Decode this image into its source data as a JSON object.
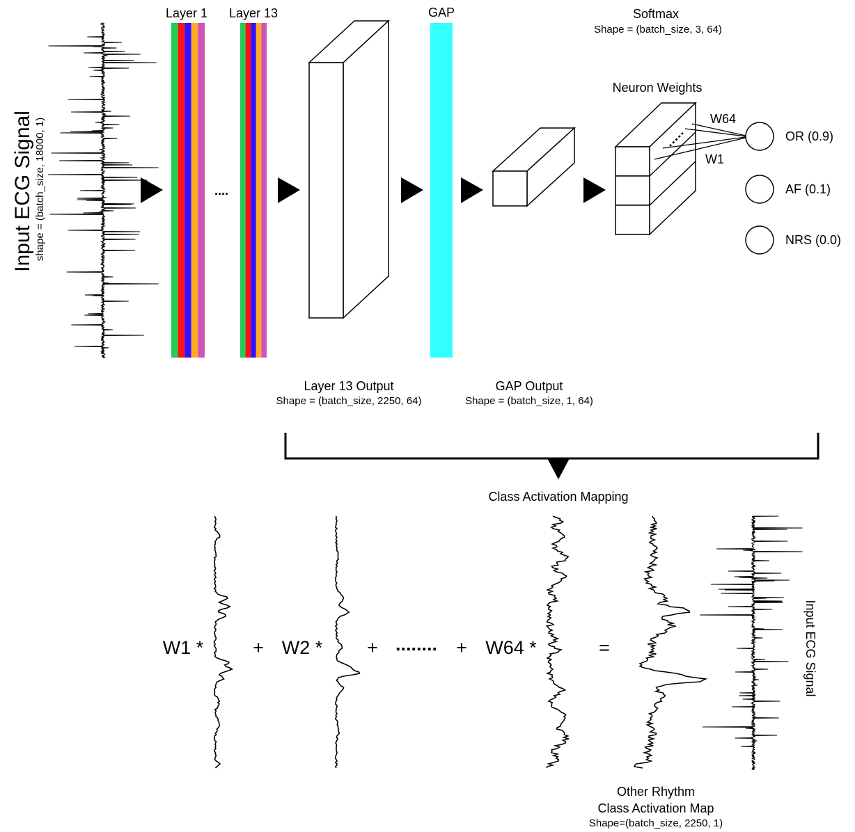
{
  "input": {
    "title": "Input ECG Signal",
    "shape": "shape = (batch_size, 18000, 1)"
  },
  "layers": {
    "layer1_label": "Layer 1",
    "ellipsis": "....",
    "layer13_label": "Layer 13",
    "stripe_colors": [
      "#22cc55",
      "#ff1111",
      "#3311ff",
      "#ffaa22",
      "#cc55bb"
    ]
  },
  "gap": {
    "label": "GAP",
    "color": "#33ffff"
  },
  "layer13_output": {
    "label": "Layer 13 Output",
    "shape": "Shape = (batch_size, 2250, 64)"
  },
  "gap_output": {
    "label": "GAP Output",
    "shape": "Shape = (batch_size, 1, 64)"
  },
  "softmax": {
    "label": "Softmax",
    "shape": "Shape = (batch_size, 3, 64)",
    "weights_label": "Neuron Weights",
    "w_top": "W64",
    "w_bottom": "W1",
    "classes": [
      {
        "label": "OR (0.9)"
      },
      {
        "label": "AF (0.1)"
      },
      {
        "label": "NRS (0.0)"
      }
    ]
  },
  "cam": {
    "label": "Class Activation Mapping",
    "terms": [
      "W1 *",
      "W2 *",
      "W64 *"
    ],
    "plus": "+",
    "dots": "........",
    "equals": "=",
    "result_line1": "Other Rhythm",
    "result_line2": "Class Activation Map",
    "result_shape": "Shape=(batch_size, 2250, 1)",
    "ecg_label": "Input ECG Signal"
  }
}
